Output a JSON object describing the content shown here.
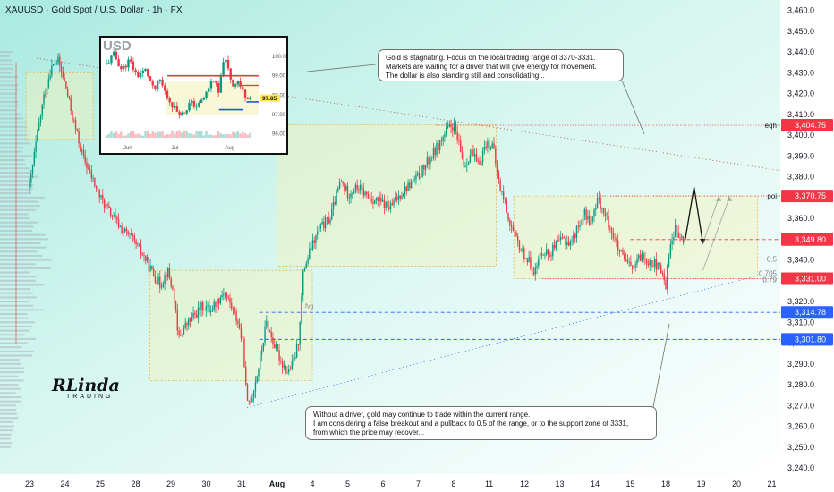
{
  "header": {
    "symbol": "XAUUSD · Gold Spot / U.S. Dollar · 1h · FX"
  },
  "annotations": {
    "top": [
      "Gold is stagnating. Focus on the local trading range of 3370-3331.",
      "Markets are waiting for a driver that will give energy for movement.",
      "The dollar is also standing still and consolidating..."
    ],
    "bottom": [
      "Without a driver, gold may continue to trade within the current range.",
      "I am considering a false breakout and a pullback to 0.5 of the range, or to the support zone of 3331,",
      "from which the price may recover..."
    ]
  },
  "logo": {
    "name": "RLinda",
    "sub": "TRADING"
  },
  "colors": {
    "up": "#089981",
    "down": "#f23645",
    "zone_fill": "#f3f1b8",
    "zone_border": "#e8b74c",
    "level_red": "#f23645",
    "level_blue": "#2962ff"
  },
  "chart_data": [
    {
      "type": "line",
      "title": "XAUUSD · Gold Spot / U.S. Dollar · 1h · FX",
      "x_ticks": [
        "23",
        "24",
        "25",
        "28",
        "29",
        "30",
        "31",
        "Aug",
        "4",
        "5",
        "6",
        "7",
        "8",
        "11",
        "12",
        "13",
        "14",
        "15",
        "18",
        "19",
        "20",
        "21"
      ],
      "y_ticks": [
        3240,
        3250,
        3260,
        3270,
        3280,
        3290,
        3300,
        3310,
        3320,
        3330,
        3340,
        3350,
        3360,
        3370,
        3380,
        3390,
        3400,
        3410,
        3420,
        3430,
        3440,
        3450,
        3460
      ],
      "ylim": [
        3237,
        3465
      ],
      "x_index_range": [
        0,
        21.5
      ],
      "price_path": [
        [
          0,
          3375
        ],
        [
          0.2,
          3398
        ],
        [
          0.4,
          3418
        ],
        [
          0.6,
          3432
        ],
        [
          0.8,
          3436
        ],
        [
          1.0,
          3425
        ],
        [
          1.2,
          3410
        ],
        [
          1.5,
          3390
        ],
        [
          1.8,
          3378
        ],
        [
          2.0,
          3370
        ],
        [
          2.3,
          3362
        ],
        [
          2.6,
          3355
        ],
        [
          2.9,
          3350
        ],
        [
          3.1,
          3345
        ],
        [
          3.3,
          3340
        ],
        [
          3.5,
          3333
        ],
        [
          3.7,
          3328
        ],
        [
          3.9,
          3335
        ],
        [
          4.1,
          3322
        ],
        [
          4.2,
          3302
        ],
        [
          4.4,
          3308
        ],
        [
          4.6,
          3312
        ],
        [
          4.9,
          3318
        ],
        [
          5.1,
          3316
        ],
        [
          5.3,
          3320
        ],
        [
          5.5,
          3325
        ],
        [
          5.7,
          3318
        ],
        [
          5.9,
          3310
        ],
        [
          6.05,
          3298
        ],
        [
          6.15,
          3270
        ],
        [
          6.3,
          3275
        ],
        [
          6.5,
          3290
        ],
        [
          6.7,
          3310
        ],
        [
          6.9,
          3300
        ],
        [
          7.1,
          3292
        ],
        [
          7.3,
          3286
        ],
        [
          7.45,
          3290
        ],
        [
          7.6,
          3300
        ],
        [
          7.75,
          3335
        ],
        [
          7.95,
          3345
        ],
        [
          8.2,
          3355
        ],
        [
          8.5,
          3360
        ],
        [
          8.8,
          3378
        ],
        [
          9.0,
          3372
        ],
        [
          9.3,
          3375
        ],
        [
          9.6,
          3370
        ],
        [
          9.9,
          3368
        ],
        [
          10.2,
          3365
        ],
        [
          10.5,
          3372
        ],
        [
          10.8,
          3377
        ],
        [
          11.0,
          3380
        ],
        [
          11.3,
          3388
        ],
        [
          11.6,
          3396
        ],
        [
          11.8,
          3402
        ],
        [
          12.0,
          3405
        ],
        [
          12.1,
          3398
        ],
        [
          12.3,
          3385
        ],
        [
          12.5,
          3392
        ],
        [
          12.7,
          3385
        ],
        [
          12.9,
          3396
        ],
        [
          13.1,
          3395
        ],
        [
          13.3,
          3375
        ],
        [
          13.45,
          3368
        ],
        [
          13.55,
          3360
        ],
        [
          13.7,
          3352
        ],
        [
          13.9,
          3345
        ],
        [
          14.1,
          3340
        ],
        [
          14.3,
          3334
        ],
        [
          14.5,
          3345
        ],
        [
          14.7,
          3343
        ],
        [
          14.9,
          3347
        ],
        [
          15.1,
          3350
        ],
        [
          15.3,
          3348
        ],
        [
          15.5,
          3355
        ],
        [
          15.7,
          3362
        ],
        [
          15.9,
          3358
        ],
        [
          16.1,
          3370
        ],
        [
          16.25,
          3362
        ],
        [
          16.4,
          3357
        ],
        [
          16.55,
          3350
        ],
        [
          16.7,
          3343
        ],
        [
          16.9,
          3338
        ],
        [
          17.1,
          3336
        ],
        [
          17.3,
          3342
        ],
        [
          17.5,
          3340
        ],
        [
          17.7,
          3338
        ],
        [
          17.85,
          3335
        ],
        [
          18.0,
          3328
        ],
        [
          18.1,
          3345
        ],
        [
          18.25,
          3355
        ],
        [
          18.4,
          3350
        ],
        [
          18.55,
          3349
        ]
      ],
      "projection": [
        [
          18.55,
          3349.8
        ],
        [
          18.8,
          3375
        ],
        [
          19.05,
          3348
        ]
      ],
      "alt_projections": [
        [
          [
            19.05,
            3348
          ],
          [
            19.5,
            3370
          ]
        ],
        [
          [
            19.05,
            3335
          ],
          [
            19.8,
            3370
          ]
        ]
      ],
      "levels": [
        {
          "price": 3404.75,
          "label": "eqh",
          "tag": "3,404.75",
          "color": "#f23645",
          "style": "dotted"
        },
        {
          "price": 3370.75,
          "label": "poi",
          "tag": "3,370.75",
          "color": "#f23645",
          "style": "dotted"
        },
        {
          "price": 3349.8,
          "label": "",
          "tag": "3,349.80",
          "color": "#f23645",
          "style": "dashed"
        },
        {
          "price": 3331.0,
          "label": "",
          "tag": "3,331.00",
          "color": "#f23645",
          "style": "dotted"
        },
        {
          "price": 3314.78,
          "label": "",
          "tag": "3,314.78",
          "color": "#2962ff",
          "style": "dashed"
        },
        {
          "price": 3301.8,
          "label": "",
          "tag": "3,301.80",
          "color": "#2962ff",
          "style": "dashed"
        }
      ],
      "fib_labels": [
        {
          "price": 3340.5,
          "text": "0.5"
        },
        {
          "price": 3333.5,
          "text": "0.705"
        },
        {
          "price": 3330.5,
          "text": "0.79"
        }
      ],
      "zones": [
        {
          "x": [
            -0.1,
            1.8
          ],
          "y": [
            3398,
            3430
          ],
          "fill": "#f3f1b8",
          "border": "#e8b74c"
        },
        {
          "x": [
            3.4,
            8.0
          ],
          "y": [
            3282,
            3335
          ],
          "fill": "#f3f1b8",
          "border": "#e8b74c"
        },
        {
          "x": [
            7.0,
            13.2
          ],
          "y": [
            3337,
            3405
          ],
          "fill": "#f3f1b8",
          "border": "#e8b74c"
        },
        {
          "x": [
            13.7,
            20.6
          ],
          "y": [
            3331,
            3370.75
          ],
          "fill": "#f3f1b8",
          "border": "#e8b74c"
        }
      ],
      "fvg_label": {
        "text": "fvg",
        "x": 8.0,
        "price": 3318
      }
    },
    {
      "type": "line",
      "title": "USD",
      "x_ticks": [
        "Jun",
        "Jul",
        "Aug"
      ],
      "y_ticks": [
        96.0,
        97.0,
        98.0,
        99.0,
        100.0
      ],
      "ylim": [
        95.8,
        100.6
      ],
      "x_index_range": [
        0,
        10
      ],
      "price_path": [
        [
          0,
          99.6
        ],
        [
          0.5,
          100.1
        ],
        [
          1.0,
          99.3
        ],
        [
          1.5,
          99.8
        ],
        [
          2.0,
          99.0
        ],
        [
          2.6,
          99.3
        ],
        [
          3.1,
          98.2
        ],
        [
          3.5,
          98.8
        ],
        [
          4.0,
          97.9
        ],
        [
          4.5,
          97.3
        ],
        [
          5.0,
          97.0
        ],
        [
          5.5,
          97.6
        ],
        [
          6.0,
          97.4
        ],
        [
          6.5,
          98.0
        ],
        [
          7.0,
          98.9
        ],
        [
          7.4,
          98.0
        ],
        [
          7.7,
          100.0
        ],
        [
          8.0,
          99.3
        ],
        [
          8.3,
          98.5
        ],
        [
          8.6,
          98.8
        ],
        [
          9.0,
          98.1
        ],
        [
          9.5,
          97.85
        ]
      ],
      "levels": [
        {
          "price": 99.0,
          "color": "#e53935"
        },
        {
          "price": 98.5,
          "color": "#e53935"
        },
        {
          "price": 97.25,
          "color": "#1e53e5"
        },
        {
          "price": 97.65,
          "color": "#1e53e5"
        }
      ],
      "last_price": {
        "text": "97.85",
        "price": 97.85
      }
    }
  ]
}
